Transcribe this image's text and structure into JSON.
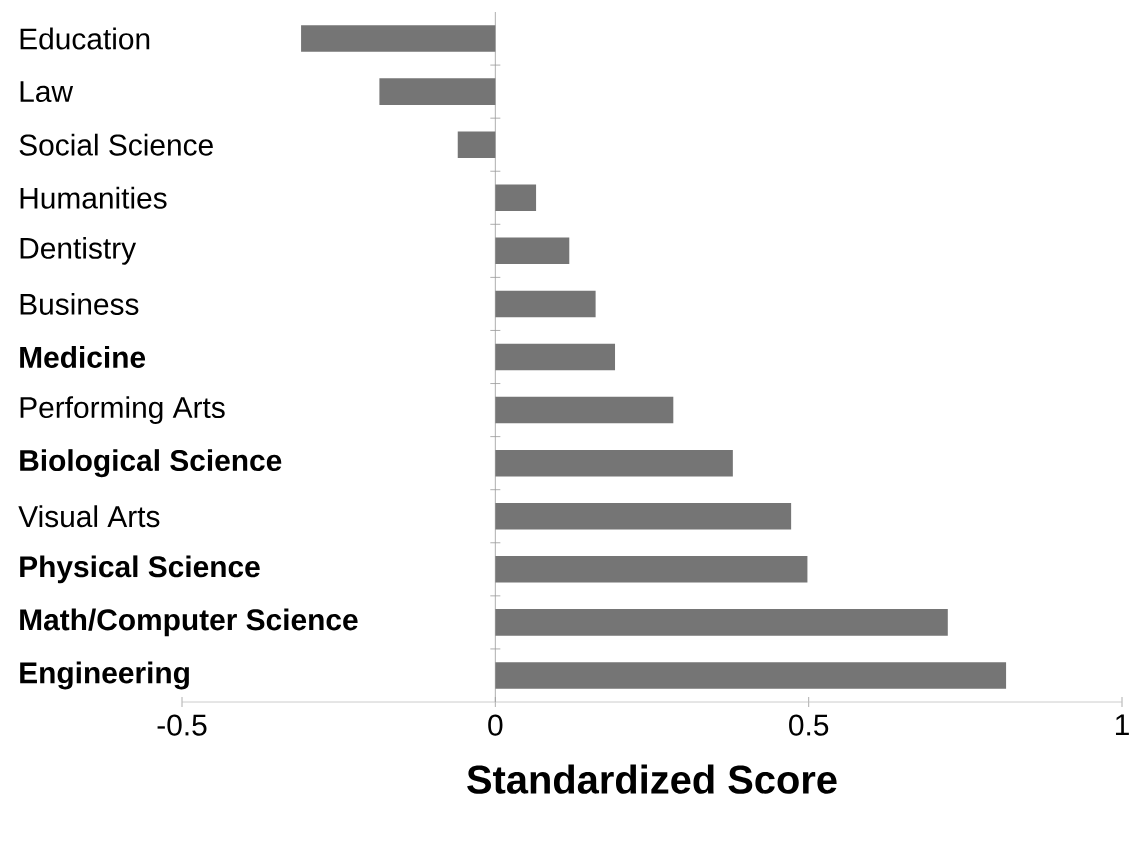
{
  "chart_data": {
    "type": "bar",
    "orientation": "horizontal",
    "xlabel": "Standardized Score",
    "categories": [
      "Education",
      "Law",
      "Social Science",
      "Humanities",
      "Dentistry",
      "Business",
      "**Medicine**",
      "Performing Arts",
      "**Biological Science**",
      "Visual Arts",
      "**Physical Science**",
      "**Math/Computer Science**",
      "**Engineering**"
    ],
    "values": [
      -0.31,
      -0.185,
      -0.06,
      0.065,
      0.118,
      0.16,
      0.191,
      0.284,
      0.379,
      0.472,
      0.498,
      0.722,
      0.815
    ],
    "color": "#757575",
    "xlim": [
      -0.5,
      1.0
    ],
    "xticks": [
      -0.5,
      0,
      0.5,
      1
    ]
  }
}
